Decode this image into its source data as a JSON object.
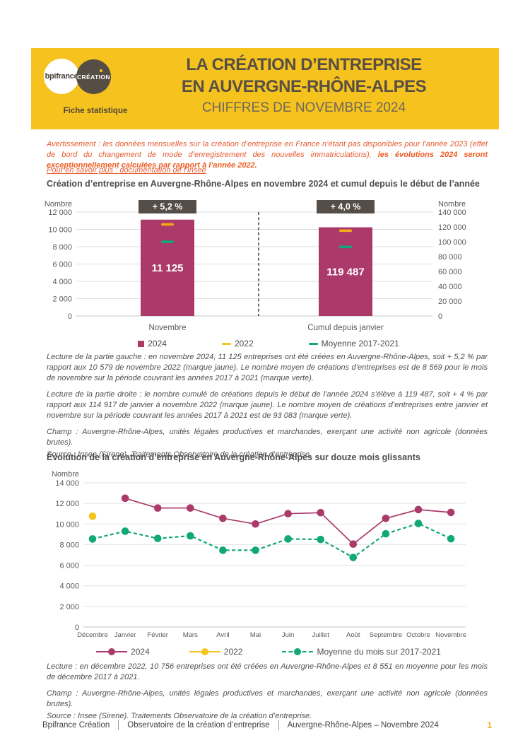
{
  "page": {
    "header": {
      "logo_bpifrance": "bpifrance",
      "logo_creation": "CRÉATION",
      "tagline": "Fiche statistique",
      "title_line1": "LA CRÉATION D’ENTREPRISE",
      "title_line2": "EN AUVERGNE-RHÔNE-ALPES",
      "subtitle": "CHIFFRES DE NOVEMBRE 2024"
    },
    "notice": {
      "text_regular": "Avertissement : les données mensuelles sur la création d’entreprise en France n’étant pas disponibles pour l’année 2023 (effet de bord du changement de mode d’enregistrement des nouvelles immatriculations),  ",
      "text_bold": "les évolutions 2024 seront exceptionnellement calculées par rapport à l’année 2022.",
      "link": "Pour en savoir plus : documentation de l’Insee"
    },
    "notes_chart1": {
      "lecture_left": "Lecture de la partie gauche : en novembre 2024, 11 125 entreprises ont été créées en Auvergne-Rhône-Alpes, soit + 5,2 % par rapport aux 10 579 de novembre 2022 (marque jaune). Le nombre moyen de créations d’entreprises est de 8 569 pour le mois de novembre sur la période couvrant les années 2017 à 2021 (marque verte).",
      "lecture_right": "Lecture de la partie droite : le nombre cumulé de créations depuis le début de l’année 2024 s’élève à 119 487, soit + 4 % par rapport aux 114 917 de janvier à novembre 2022 (marque jaune). Le nombre moyen de créations d’entreprises entre janvier et novembre sur la période couvrant les années 2017 à 2021 est de 93 083 (marque verte).",
      "champ": "Champ : Auvergne-Rhône-Alpes, unités légales productives et marchandes, exerçant une activité non agricole (données brutes).",
      "source": "Source : Insee (Sirene). Traitements Observatoire de la création d’entreprise."
    },
    "notes_chart2": {
      "lecture": "Lecture : en décembre 2022, 10 756 entreprises ont été créées en Auvergne-Rhône-Alpes et 8 551 en moyenne pour les mois de décembre 2017 à 2021.",
      "champ": "Champ : Auvergne-Rhône-Alpes, unités légales productives et marchandes, exerçant une activité non agricole (données brutes).",
      "source": "Source : Insee (Sirene). Traitements Observatoire de la création d’entreprise."
    },
    "footer": {
      "items": [
        "Bpifrance Création",
        "Observatoire de la création d’entreprise",
        "Auvergne-Rhône-Alpes – Novembre 2024"
      ],
      "page": "1"
    },
    "colors": {
      "banner_yellow": "#F5C21E",
      "magenta": "#AB3969",
      "green": "#10A878",
      "yellow_2022": "#F5C41E",
      "orange_mark": "#F4A91C",
      "badge_brown": "#554E48",
      "orange_text": "#E65C30"
    }
  },
  "chart_data": [
    {
      "type": "bar",
      "title": "Création d’entreprise en Auvergne-Rhône-Alpes en novembre 2024 et cumul depuis le début de l’année",
      "axis_label_left": "Nombre",
      "axis_label_right": "Nombre",
      "left_axis": {
        "min": 0,
        "max": 12000,
        "step": 2000
      },
      "right_axis": {
        "min": 0,
        "max": 140000,
        "step": 20000
      },
      "grid": true,
      "panels": [
        {
          "category": "Novembre",
          "axis": "left",
          "badge": "+ 5,2 %",
          "value_2024": 11125,
          "value_label": "11 125",
          "marker_2022": 10579,
          "marker_moyenne_2017_2021": 8569
        },
        {
          "category": "Cumul depuis janvier",
          "axis": "right",
          "badge": "+ 4,0 %",
          "value_2024": 119487,
          "value_label": "119 487",
          "marker_2022": 114917,
          "marker_moyenne_2017_2021": 93083
        }
      ],
      "legend": [
        {
          "label": "2024",
          "marker": "square",
          "color": "#AB3969"
        },
        {
          "label": "2022",
          "marker": "dash",
          "color": "#F5C41E"
        },
        {
          "label": "Moyenne 2017-2021",
          "marker": "dash",
          "color": "#10A878"
        }
      ],
      "legend_position": "bottom"
    },
    {
      "type": "line",
      "title": "Évolution de la création d’entreprise en Auvergne-Rhône-Alpes sur douze mois glissants",
      "ylabel": "Nombre",
      "y_axis": {
        "min": 0,
        "max": 14000,
        "step": 2000
      },
      "grid": true,
      "categories": [
        "Décembre",
        "Janvier",
        "Février",
        "Mars",
        "Avril",
        "Mai",
        "Juin",
        "Juillet",
        "Août",
        "Septembre",
        "Octobre",
        "Novembre"
      ],
      "series": [
        {
          "name": "2024",
          "color": "#AB3969",
          "style": "solid",
          "values": [
            null,
            12500,
            11550,
            11550,
            10550,
            10000,
            11000,
            11100,
            8050,
            10550,
            11400,
            11125
          ]
        },
        {
          "name": "2022",
          "color": "#F5C41E",
          "style": "point",
          "values": [
            10756,
            null,
            null,
            null,
            null,
            null,
            null,
            null,
            null,
            null,
            null,
            null
          ]
        },
        {
          "name": "Moyenne du mois sur 2017-2021",
          "color": "#10A878",
          "style": "dashed",
          "values": [
            8551,
            9300,
            8600,
            8850,
            7450,
            7450,
            8550,
            8500,
            6750,
            9050,
            10050,
            8569
          ]
        }
      ],
      "legend_position": "bottom"
    }
  ]
}
